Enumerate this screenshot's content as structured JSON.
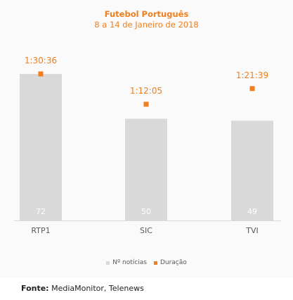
{
  "chart_data": {
    "type": "bar",
    "title": "Futebol Português",
    "subtitle": "8 a 14 de Janeiro de 2018",
    "categories": [
      "RTP1",
      "SIC",
      "TVI"
    ],
    "series": [
      {
        "name": "Nº notícias",
        "kind": "bar",
        "color": "#d9d9d9",
        "values": [
          72,
          50,
          49
        ]
      },
      {
        "name": "Duração",
        "kind": "marker",
        "color": "#f07e1c",
        "values": [
          "1:30:36",
          "1:12:05",
          "1:21:39"
        ]
      }
    ],
    "legend_position": "bottom",
    "grid": false
  },
  "source": {
    "label": "Fonte:",
    "text": "MediaMonitor, Telenews"
  }
}
